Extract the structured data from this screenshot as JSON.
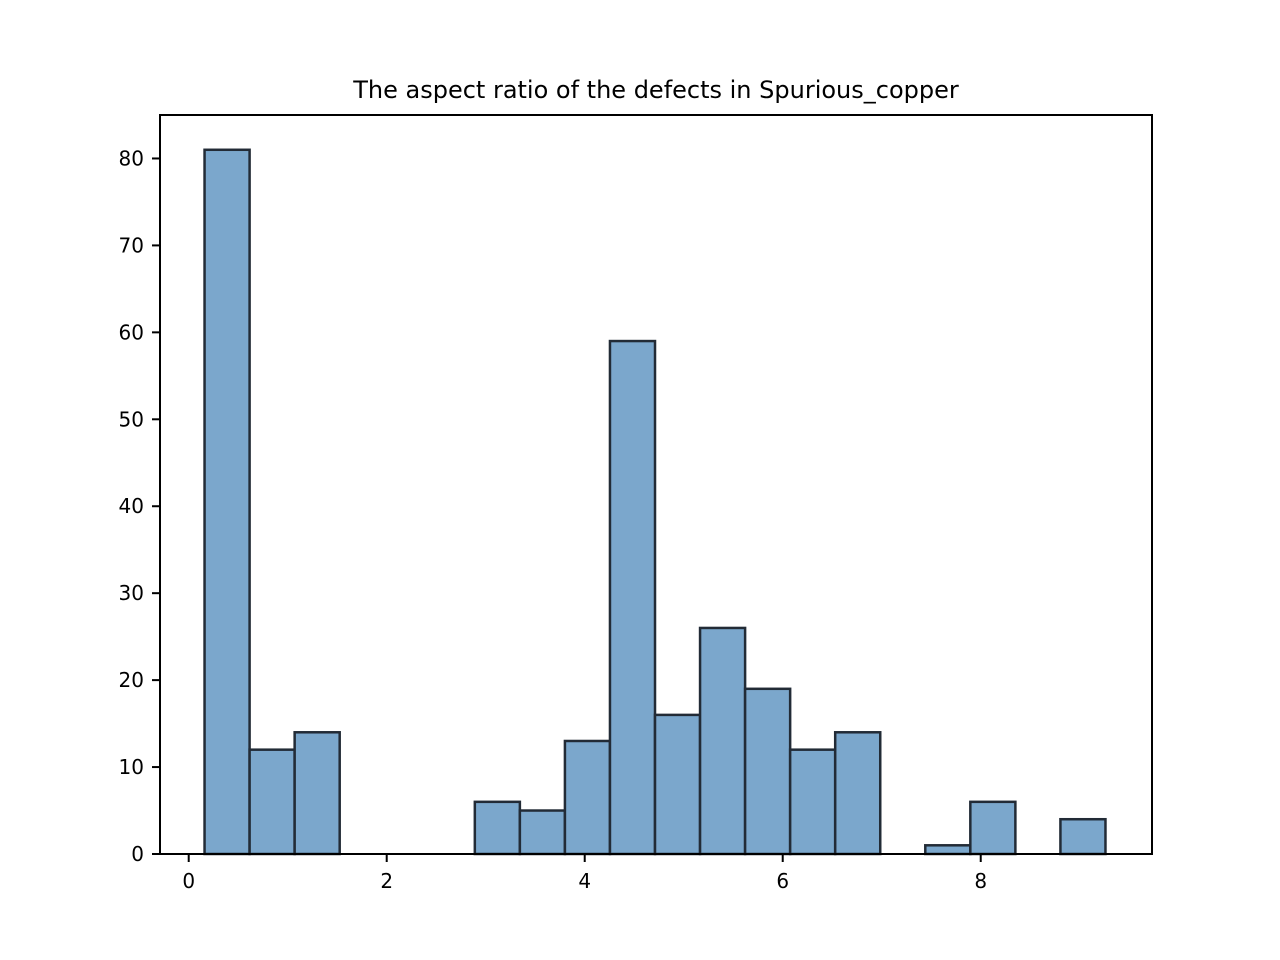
{
  "chart_data": {
    "type": "bar",
    "title": "The aspect ratio of the defects in Spurious_copper",
    "xlabel": "",
    "ylabel": "",
    "xlim": [
      -0.29,
      9.73
    ],
    "ylim": [
      0,
      85
    ],
    "xticks": [
      0,
      2,
      4,
      6,
      8
    ],
    "yticks": [
      0,
      10,
      20,
      30,
      40,
      50,
      60,
      70,
      80
    ],
    "grid": false,
    "bar_color": "#7ba7cc",
    "edge_color": "#222b36",
    "bins": [
      {
        "x0": 0.16,
        "x1": 0.615,
        "count": 81
      },
      {
        "x0": 0.615,
        "x1": 1.07,
        "count": 12
      },
      {
        "x0": 1.07,
        "x1": 1.525,
        "count": 14
      },
      {
        "x0": 1.525,
        "x1": 1.98,
        "count": 0
      },
      {
        "x0": 1.98,
        "x1": 2.435,
        "count": 0
      },
      {
        "x0": 2.435,
        "x1": 2.89,
        "count": 0
      },
      {
        "x0": 2.89,
        "x1": 3.345,
        "count": 6
      },
      {
        "x0": 3.345,
        "x1": 3.8,
        "count": 5
      },
      {
        "x0": 3.8,
        "x1": 4.255,
        "count": 13
      },
      {
        "x0": 4.255,
        "x1": 4.71,
        "count": 59
      },
      {
        "x0": 4.71,
        "x1": 5.165,
        "count": 16
      },
      {
        "x0": 5.165,
        "x1": 5.62,
        "count": 26
      },
      {
        "x0": 5.62,
        "x1": 6.075,
        "count": 19
      },
      {
        "x0": 6.075,
        "x1": 6.53,
        "count": 12
      },
      {
        "x0": 6.53,
        "x1": 6.985,
        "count": 14
      },
      {
        "x0": 6.985,
        "x1": 7.44,
        "count": 0
      },
      {
        "x0": 7.44,
        "x1": 7.895,
        "count": 1
      },
      {
        "x0": 7.895,
        "x1": 8.35,
        "count": 6
      },
      {
        "x0": 8.35,
        "x1": 8.805,
        "count": 0
      },
      {
        "x0": 8.805,
        "x1": 9.26,
        "count": 4
      }
    ]
  }
}
